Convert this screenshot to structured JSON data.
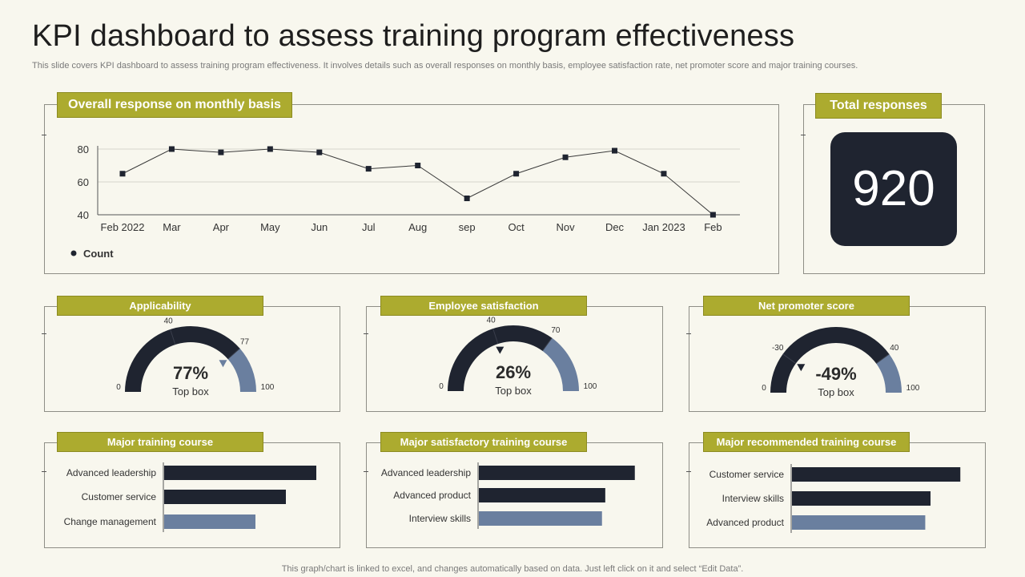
{
  "header": {
    "title": "KPI dashboard to assess training program effectiveness",
    "subtitle": "This slide covers KPI dashboard to assess training program effectiveness. It involves details such as overall responses on monthly basis, employee satisfaction rate, net promoter score and major training courses."
  },
  "footer": {
    "note": "This graph/chart is linked to excel,  and changes automatically based on data. Just left click on it and select “Edit Data”."
  },
  "colors": {
    "olive": "#acab2f",
    "dark": "#1f2430",
    "steel": "#6a7f9f",
    "background": "#f8f7ee"
  },
  "total": {
    "label": "Total responses",
    "value": "920"
  },
  "gauges": [
    {
      "label": "Applicability",
      "value_text": "77%",
      "sub": "Top box",
      "min": 0,
      "max": 100,
      "dark_end": 77,
      "marks": [
        40,
        77
      ],
      "min_label": "0",
      "max_label": "100",
      "mark_labels": [
        "40",
        "77"
      ]
    },
    {
      "label": "Employee satisfaction",
      "value_text": "26%",
      "sub": "Top box",
      "min": 0,
      "max": 100,
      "dark_end": 70,
      "marks": [
        40,
        70
      ],
      "min_label": "0",
      "max_label": "100",
      "mark_labels": [
        "40",
        "70"
      ]
    },
    {
      "label": "Net promoter score",
      "value_text": "-49%",
      "sub": "Top box",
      "min": 0,
      "max": 100,
      "dark_end": 80,
      "marks": [
        20,
        80
      ],
      "min_label": "0",
      "max_label": "100",
      "mark_labels": [
        "-30",
        "40"
      ]
    }
  ],
  "chart_data": [
    {
      "type": "line",
      "title": "Overall response on monthly basis",
      "categories": [
        "Feb  2022",
        "Mar",
        "Apr",
        "May",
        "Jun",
        "Jul",
        "Aug",
        "sep",
        "Oct",
        "Nov",
        "Dec",
        "Jan 2023",
        "Feb"
      ],
      "series": [
        {
          "name": "Count",
          "values": [
            65,
            80,
            78,
            80,
            78,
            68,
            70,
            50,
            65,
            75,
            79,
            65,
            40
          ]
        }
      ],
      "y_ticks": [
        "40",
        "60",
        "80"
      ],
      "ylim": [
        40,
        80
      ],
      "legend": "bottom-left",
      "grid": true
    },
    {
      "type": "bar",
      "title": "Major training course",
      "categories": [
        "Advanced leadership",
        "Customer service",
        "Change management"
      ],
      "values": [
        95,
        76,
        57
      ],
      "max": 100
    },
    {
      "type": "bar",
      "title": "Major satisfactory  training course",
      "categories": [
        "Advanced leadership",
        "Advanced product",
        "Interview skills"
      ],
      "values": [
        95,
        77,
        75
      ],
      "max": 100
    },
    {
      "type": "bar",
      "title": "Major recommended training course",
      "categories": [
        "Customer service",
        "Interview skills",
        "Advanced product"
      ],
      "values": [
        96,
        79,
        76
      ],
      "max": 100
    }
  ]
}
